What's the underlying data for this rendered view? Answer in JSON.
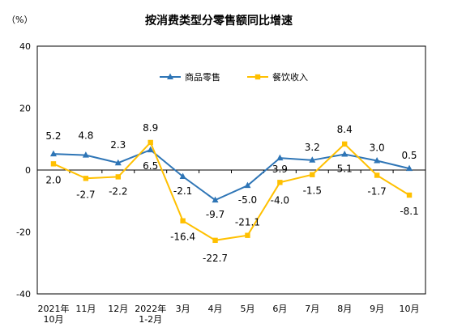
{
  "chart_data": {
    "type": "line",
    "title": "按消费类型分零售额同比增速",
    "unit_label": "（%）",
    "categories": [
      [
        "2021年",
        "10月"
      ],
      [
        "11月"
      ],
      [
        "12月"
      ],
      [
        "2022年",
        "1-2月"
      ],
      [
        "3月"
      ],
      [
        "4月"
      ],
      [
        "5月"
      ],
      [
        "6月"
      ],
      [
        "7月"
      ],
      [
        "8月"
      ],
      [
        "9月"
      ],
      [
        "10月"
      ]
    ],
    "ylim": [
      -40,
      40
    ],
    "yticks": [
      40,
      20,
      0,
      -20,
      -40
    ],
    "legend_position": "top-right",
    "series": [
      {
        "name": "商品零售",
        "color": "#2E75B6",
        "marker": "triangle",
        "values": [
          5.2,
          4.8,
          2.3,
          6.5,
          -2.1,
          -9.7,
          -5.0,
          3.9,
          3.2,
          5.1,
          3.0,
          0.5
        ],
        "labels": [
          "5.2",
          "4.8",
          "2.3",
          "6.5",
          "-2.1",
          "-9.7",
          "-5.0",
          "3.9",
          "3.2",
          "5.1",
          "3.0",
          "0.5"
        ]
      },
      {
        "name": "餐饮收入",
        "color": "#FFC000",
        "marker": "square",
        "values": [
          2.0,
          -2.7,
          -2.2,
          8.9,
          -16.4,
          -22.7,
          -21.1,
          -4.0,
          -1.5,
          8.4,
          -1.7,
          -8.1
        ],
        "labels": [
          "2.0",
          "-2.7",
          "-2.2",
          "8.9",
          "-16.4",
          "-22.7",
          "-21.1",
          "-4.0",
          "-1.5",
          "8.4",
          "-1.7",
          "-8.1"
        ]
      }
    ]
  }
}
